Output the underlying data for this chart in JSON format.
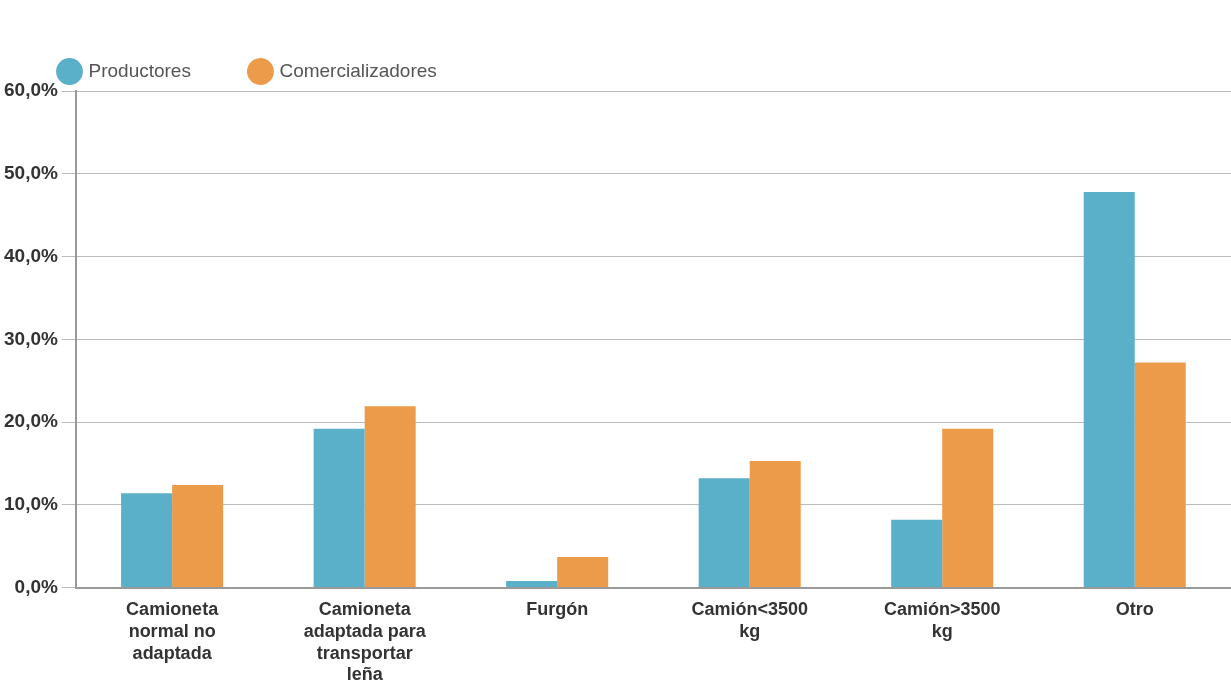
{
  "chart_data": {
    "type": "bar",
    "categories": [
      "Camioneta normal no adaptada",
      "Camioneta adaptada para transportar leña",
      "Furgón",
      "Camión<3500 kg",
      "Camión>3500 kg",
      "Otro"
    ],
    "series": [
      {
        "name": "Productores",
        "color": "#5aafc9",
        "values": [
          11.4,
          19.2,
          0.8,
          13.2,
          8.2,
          47.8
        ]
      },
      {
        "name": "Comercializadores",
        "color": "#ec9b4a",
        "values": [
          12.4,
          21.9,
          3.7,
          15.3,
          19.2,
          27.2
        ]
      }
    ],
    "ylim": [
      0,
      60
    ],
    "yticks": [
      {
        "value": 0,
        "label": "0,0%"
      },
      {
        "value": 10,
        "label": "10,0%"
      },
      {
        "value": 20,
        "label": "20,0%"
      },
      {
        "value": 30,
        "label": "30,0%"
      },
      {
        "value": 40,
        "label": "40,0%"
      },
      {
        "value": 50,
        "label": "50,0%"
      },
      {
        "value": 60,
        "label": "60,0%"
      }
    ],
    "grid": "y",
    "legend": "top left"
  }
}
